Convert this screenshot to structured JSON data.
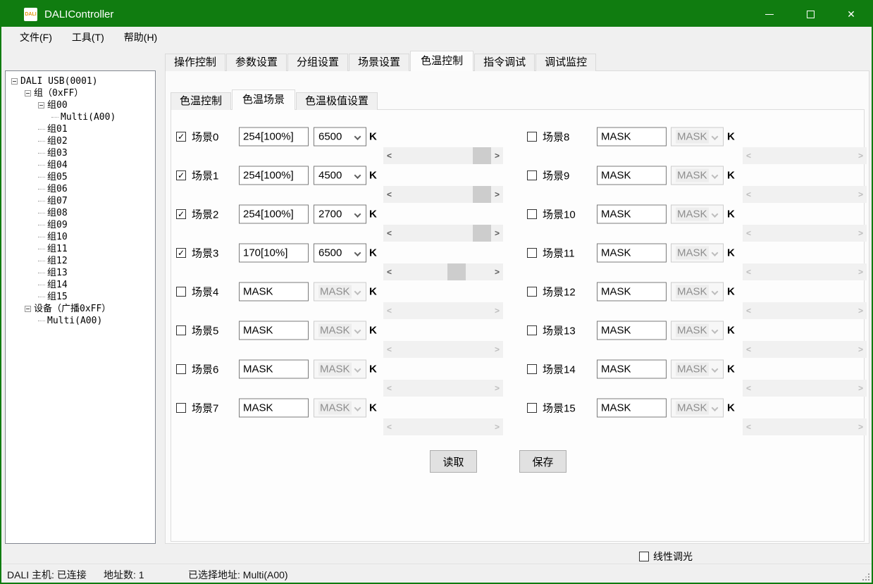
{
  "window": {
    "title": "DALIController",
    "icon_text": "DALI",
    "accent_green": "#107c10"
  },
  "titlebar_buttons": {
    "minimize": "minimize",
    "maximize": "maximize",
    "close": "close"
  },
  "menu": {
    "items": [
      {
        "label": "文件(F)"
      },
      {
        "label": "工具(T)"
      },
      {
        "label": "帮助(H)"
      }
    ]
  },
  "tree": {
    "items": [
      {
        "label": "DALI USB(0001)",
        "level": 0,
        "expander": true
      },
      {
        "label": "组（0xFF）",
        "level": 1,
        "expander": true
      },
      {
        "label": "组00",
        "level": 2,
        "expander": true
      },
      {
        "label": "Multi(A00)",
        "level": 3,
        "expander": false
      },
      {
        "label": "组01",
        "level": 2,
        "expander": false
      },
      {
        "label": "组02",
        "level": 2,
        "expander": false
      },
      {
        "label": "组03",
        "level": 2,
        "expander": false
      },
      {
        "label": "组04",
        "level": 2,
        "expander": false
      },
      {
        "label": "组05",
        "level": 2,
        "expander": false
      },
      {
        "label": "组06",
        "level": 2,
        "expander": false
      },
      {
        "label": "组07",
        "level": 2,
        "expander": false
      },
      {
        "label": "组08",
        "level": 2,
        "expander": false
      },
      {
        "label": "组09",
        "level": 2,
        "expander": false
      },
      {
        "label": "组10",
        "level": 2,
        "expander": false
      },
      {
        "label": "组11",
        "level": 2,
        "expander": false
      },
      {
        "label": "组12",
        "level": 2,
        "expander": false
      },
      {
        "label": "组13",
        "level": 2,
        "expander": false
      },
      {
        "label": "组14",
        "level": 2,
        "expander": false
      },
      {
        "label": "组15",
        "level": 2,
        "expander": false
      },
      {
        "label": "设备（广播0xFF）",
        "level": 1,
        "expander": true
      },
      {
        "label": "Multi(A00)",
        "level": 2,
        "expander": false
      }
    ]
  },
  "tabs": {
    "selected": "色温控制",
    "items": [
      {
        "label": "操作控制"
      },
      {
        "label": "参数设置"
      },
      {
        "label": "分组设置"
      },
      {
        "label": "场景设置"
      },
      {
        "label": "色温控制"
      },
      {
        "label": "指令调试"
      },
      {
        "label": "调试监控"
      }
    ]
  },
  "subtabs": {
    "selected": "色温场景",
    "items": [
      {
        "label": "色温控制"
      },
      {
        "label": "色温场景"
      },
      {
        "label": "色温极值设置"
      }
    ]
  },
  "scene_section": {
    "unit": "K"
  },
  "scenes": [
    {
      "name": "场景0",
      "checked": true,
      "level": "254[100%]",
      "cct": "6500",
      "enabled": true,
      "thumb": 1.0
    },
    {
      "name": "场景1",
      "checked": true,
      "level": "254[100%]",
      "cct": "4500",
      "enabled": true,
      "thumb": 1.0
    },
    {
      "name": "场景2",
      "checked": true,
      "level": "254[100%]",
      "cct": "2700",
      "enabled": true,
      "thumb": 1.0
    },
    {
      "name": "场景3",
      "checked": true,
      "level": "170[10%]",
      "cct": "6500",
      "enabled": true,
      "thumb": 0.67
    },
    {
      "name": "场景4",
      "checked": false,
      "level": "MASK",
      "cct": "MASK",
      "enabled": false,
      "thumb": null
    },
    {
      "name": "场景5",
      "checked": false,
      "level": "MASK",
      "cct": "MASK",
      "enabled": false,
      "thumb": null
    },
    {
      "name": "场景6",
      "checked": false,
      "level": "MASK",
      "cct": "MASK",
      "enabled": false,
      "thumb": null
    },
    {
      "name": "场景7",
      "checked": false,
      "level": "MASK",
      "cct": "MASK",
      "enabled": false,
      "thumb": null
    },
    {
      "name": "场景8",
      "checked": false,
      "level": "MASK",
      "cct": "MASK",
      "enabled": false,
      "thumb": null
    },
    {
      "name": "场景9",
      "checked": false,
      "level": "MASK",
      "cct": "MASK",
      "enabled": false,
      "thumb": null
    },
    {
      "name": "场景10",
      "checked": false,
      "level": "MASK",
      "cct": "MASK",
      "enabled": false,
      "thumb": null
    },
    {
      "name": "场景11",
      "checked": false,
      "level": "MASK",
      "cct": "MASK",
      "enabled": false,
      "thumb": null
    },
    {
      "name": "场景12",
      "checked": false,
      "level": "MASK",
      "cct": "MASK",
      "enabled": false,
      "thumb": null
    },
    {
      "name": "场景13",
      "checked": false,
      "level": "MASK",
      "cct": "MASK",
      "enabled": false,
      "thumb": null
    },
    {
      "name": "场景14",
      "checked": false,
      "level": "MASK",
      "cct": "MASK",
      "enabled": false,
      "thumb": null
    },
    {
      "name": "场景15",
      "checked": false,
      "level": "MASK",
      "cct": "MASK",
      "enabled": false,
      "thumb": null
    }
  ],
  "buttons": {
    "read": "读取",
    "save": "保存"
  },
  "linear_dimming": {
    "label": "线性调光",
    "checked": false
  },
  "statusbar": {
    "host": "DALI 主机: 已连接",
    "addr_count": "地址数: 1",
    "selected_addr": "已选择地址: Multi(A00)"
  },
  "check_glyph": "✓"
}
